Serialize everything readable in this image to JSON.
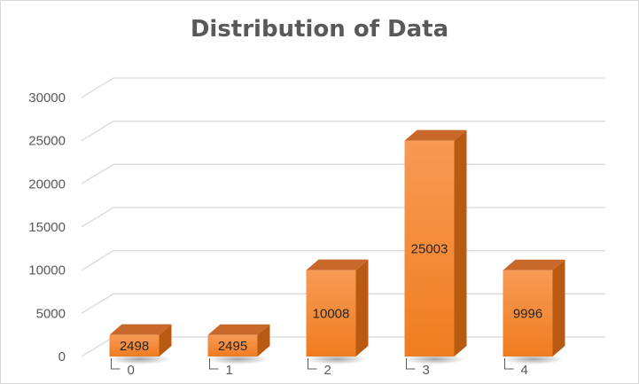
{
  "chart_data": {
    "type": "bar",
    "title": "Distribution of Data",
    "xlabel": "",
    "ylabel": "",
    "categories": [
      "0",
      "1",
      "2",
      "3",
      "4"
    ],
    "values": [
      2498,
      2495,
      10008,
      25003,
      9996
    ],
    "data_labels": [
      "2498",
      "2495",
      "10008",
      "25003",
      "9996"
    ],
    "yticks": [
      0,
      5000,
      10000,
      15000,
      20000,
      25000,
      30000
    ],
    "ylim": [
      0,
      30000
    ],
    "grid": true,
    "legend": "none",
    "style": "3d-column"
  },
  "colors": {
    "bar_front": "#f07d1f",
    "bar_front_light": "#f79a55",
    "bar_side": "#b85a12",
    "bar_top": "#c8682a",
    "grid": "#d9d9d9",
    "axis_text": "#595959",
    "title": "#595959"
  }
}
